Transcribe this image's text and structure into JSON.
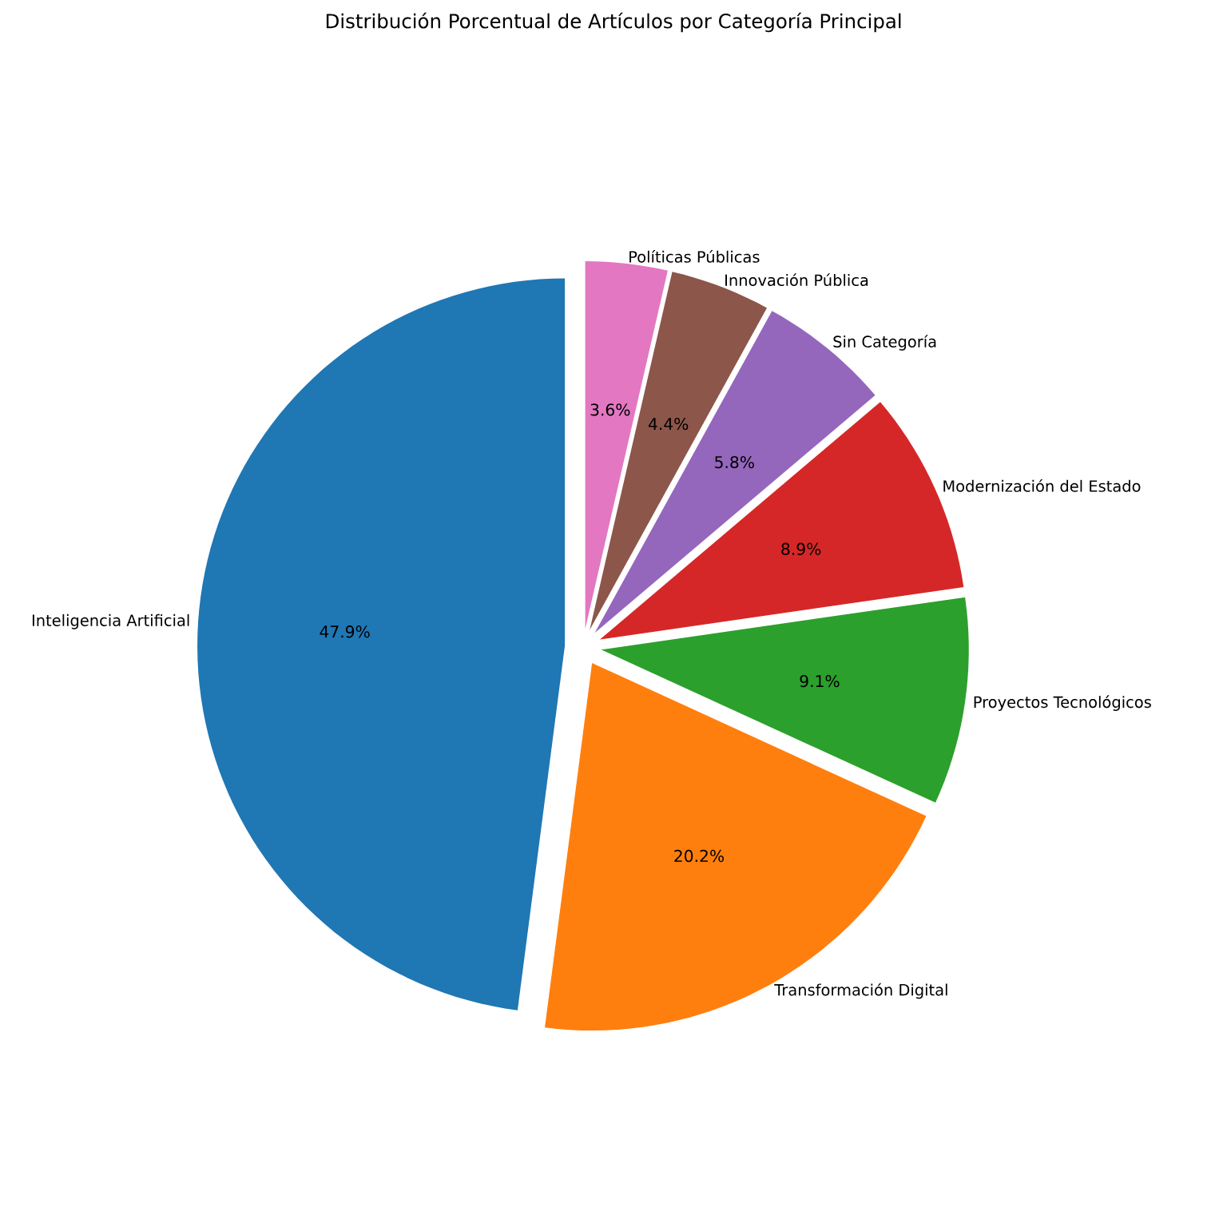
{
  "chart_data": {
    "type": "pie",
    "title": "Distribución Porcentual de Artículos por Categoría Principal",
    "categories": [
      "Inteligencia Artificial",
      "Transformación Digital",
      "Proyectos Tecnológicos",
      "Modernización del Estado",
      "Sin Categoría",
      "Innovación Pública",
      "Políticas Públicas"
    ],
    "values": [
      47.9,
      20.2,
      9.1,
      8.9,
      5.8,
      4.4,
      3.6
    ],
    "value_labels": [
      "47.9%",
      "20.2%",
      "9.1%",
      "8.9%",
      "5.8%",
      "4.4%",
      "3.6%"
    ],
    "colors": [
      "#1f77b4",
      "#ff7f0e",
      "#2ca02c",
      "#d62728",
      "#9467bd",
      "#8c564b",
      "#e377c2"
    ]
  }
}
